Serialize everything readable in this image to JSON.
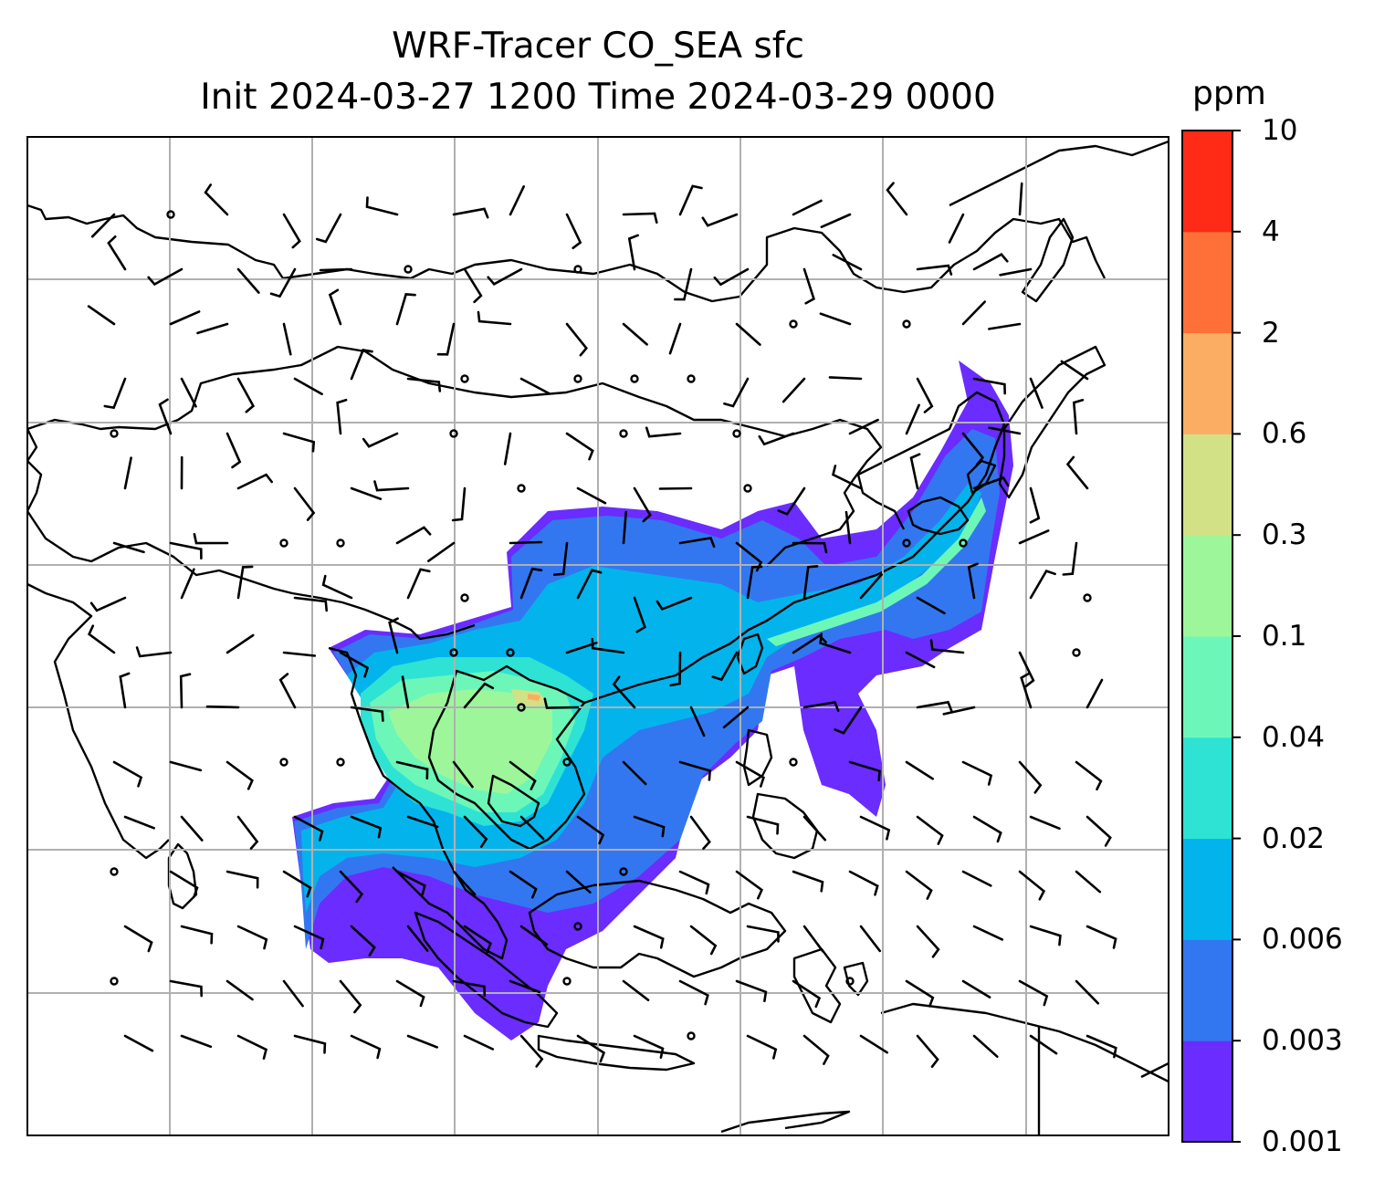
{
  "title_line1": "WRF-Tracer CO_SEA sfc",
  "title_line2": "Init 2024-03-27 1200 Time 2024-03-29 0000",
  "colorbar": {
    "unit": "ppm",
    "levels": [
      "0.001",
      "0.003",
      "0.006",
      "0.02",
      "0.04",
      "0.1",
      "0.3",
      "0.6",
      "2",
      "4",
      "10"
    ],
    "colors": [
      "#6a2cff",
      "#3377f0",
      "#03b4ec",
      "#2ee3d4",
      "#6cf7b9",
      "#9df79a",
      "#d3e186",
      "#fcad64",
      "#ff7038",
      "#ff2b16"
    ]
  },
  "map": {
    "coastline_color": "#000000",
    "gridline_color": "#b0b0b0",
    "barb_color": "#000000"
  }
}
